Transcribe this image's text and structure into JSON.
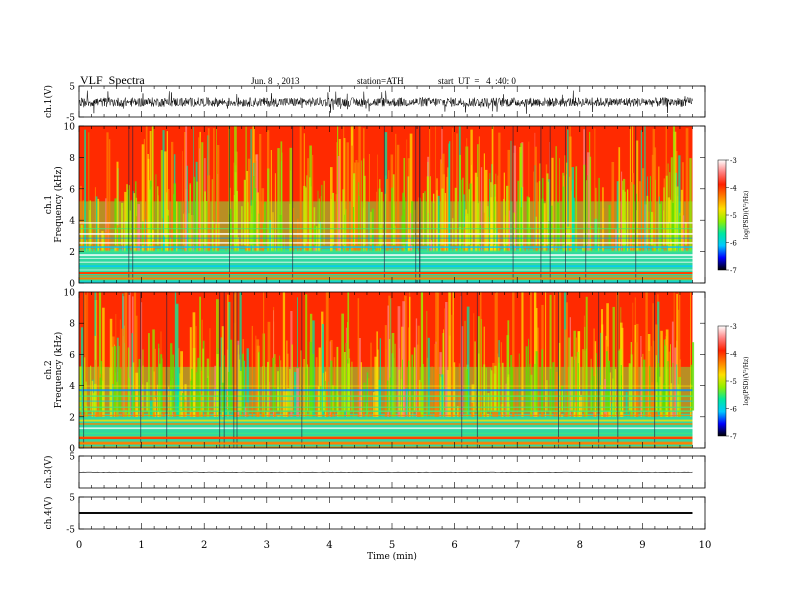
{
  "header": {
    "title": "VLF  Spectra",
    "date": "Jun. 8  , 2013",
    "station": "station=ATH",
    "start_ut": "start  UT  =   4  :40: 0"
  },
  "colors": {
    "colorbar": [
      "#000000",
      "#0000ff",
      "#00c8ff",
      "#00e8a0",
      "#90f000",
      "#ffe000",
      "#ff8000",
      "#ff2000",
      "#ff8080",
      "#ffffff"
    ],
    "spectrogram_background": "#ff2a00",
    "waveform": "#000000"
  },
  "chart_data": [
    {
      "type": "line",
      "panel": "ch1-waveform",
      "ylabel": "ch.1(V)",
      "ylim": [
        -5,
        5
      ],
      "yticks": [
        "5",
        "-5"
      ],
      "xlim": [
        0,
        10
      ],
      "x_end": 9.8,
      "description_values": {
        "mean": -0.2,
        "amplitude": 1.5
      }
    },
    {
      "type": "heatmap",
      "panel": "ch1-spectrogram",
      "ylabel": [
        "ch.1",
        "Frequency  (kHz)"
      ],
      "ylim": [
        0,
        10
      ],
      "yticks": [
        "0",
        "2",
        "4",
        "6",
        "8",
        "10"
      ],
      "xlim": [
        0,
        10
      ],
      "x_end": 9.8,
      "colorbar": {
        "label": "log(PSD)(V²/Hz)",
        "ticks": [
          "-3",
          "-4",
          "-5",
          "-6",
          "-7"
        ],
        "range": [
          -7,
          -3
        ]
      }
    },
    {
      "type": "heatmap",
      "panel": "ch2-spectrogram",
      "ylabel": [
        "ch.2",
        "Frequency  (kHz)"
      ],
      "ylim": [
        0,
        10
      ],
      "yticks": [
        "0",
        "2",
        "4",
        "6",
        "8",
        "10"
      ],
      "xlim": [
        0,
        10
      ],
      "x_end": 9.8,
      "colorbar": {
        "label": "log(PSD)(V²/Hz)",
        "ticks": [
          "-3",
          "-4",
          "-5",
          "-6",
          "-7"
        ],
        "range": [
          -7,
          -3
        ]
      }
    },
    {
      "type": "line",
      "panel": "ch3-waveform",
      "ylabel": "ch.3(V)",
      "ylim": [
        -5,
        5
      ],
      "yticks": [
        "5"
      ],
      "xlim": [
        0,
        10
      ],
      "x_end": 9.8,
      "description_values": {
        "mean": -0.1,
        "amplitude": 0.05
      }
    },
    {
      "type": "line",
      "panel": "ch4-waveform",
      "ylabel": "ch.4(V)",
      "ylim": [
        -5,
        5
      ],
      "yticks": [
        "5",
        "-5"
      ],
      "xlim": [
        0,
        10
      ],
      "x_end": 9.8,
      "description_values": {
        "mean": 0.0,
        "amplitude": 0.3
      }
    }
  ],
  "x_axis": {
    "label": "Time  (min)",
    "ticks": [
      "0",
      "1",
      "2",
      "3",
      "4",
      "5",
      "6",
      "7",
      "8",
      "9",
      "10"
    ]
  }
}
